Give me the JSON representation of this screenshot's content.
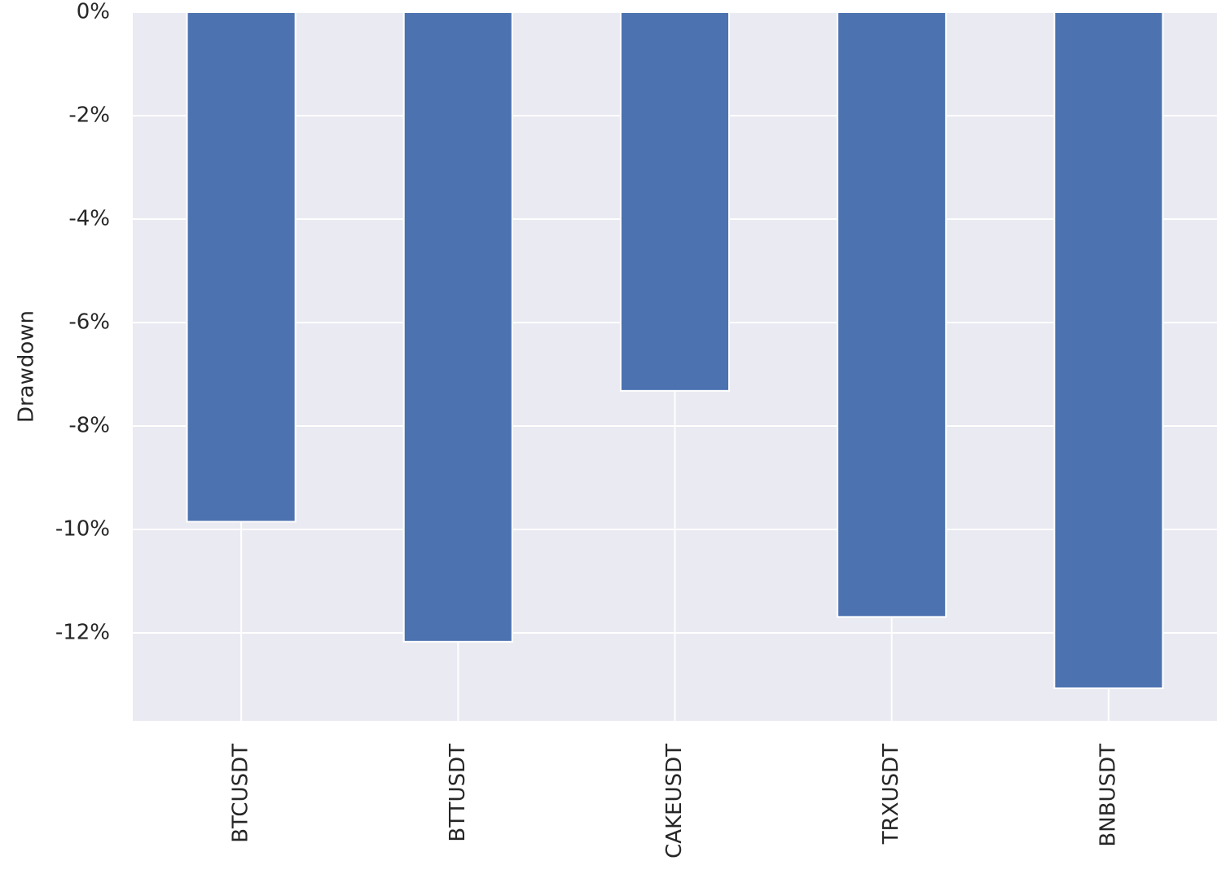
{
  "chart_data": {
    "type": "bar",
    "y_label": "Drawdown",
    "categories": [
      "BTCUSDT",
      "BTTUSDT",
      "CAKEUSDT",
      "TRXUSDT",
      "BNBUSDT"
    ],
    "values": [
      -9.85,
      -12.17,
      -7.32,
      -11.69,
      -13.07
    ],
    "color": "#4c72b0",
    "ylim": [
      -13.7,
      0
    ],
    "yticks": [
      {
        "value": 0,
        "label": "0%"
      },
      {
        "value": -2,
        "label": "-2%"
      },
      {
        "value": -4,
        "label": "-4%"
      },
      {
        "value": -6,
        "label": "-6%"
      },
      {
        "value": -8,
        "label": "-8%"
      },
      {
        "value": -10,
        "label": "-10%"
      },
      {
        "value": -12,
        "label": "-12%"
      }
    ],
    "grid": true
  }
}
